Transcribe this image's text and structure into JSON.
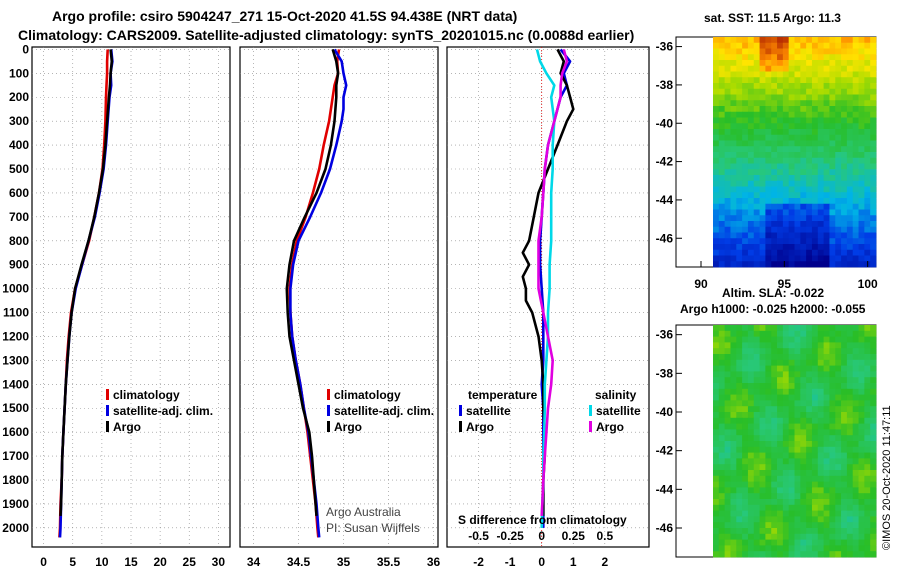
{
  "header": {
    "line1": "Argo profile: csiro 5904247_271 15-Oct-2020 41.5S 94.438E (NRT data)",
    "line2": "Climatology: CARS2009. Satellite-adjusted climatology: synTS_20201015.nc (0.0088d earlier)"
  },
  "depth_ticks": [
    "0",
    "100",
    "200",
    "300",
    "400",
    "500",
    "600",
    "700",
    "800",
    "900",
    "1000",
    "1100",
    "1200",
    "1300",
    "1400",
    "1500",
    "1600",
    "1700",
    "1800",
    "1900",
    "2000"
  ],
  "colors": {
    "climatology": "#e00000",
    "satellite": "#0000e0",
    "argo": "#000000",
    "salinity_sat": "#00d8e8",
    "salinity_argo": "#e000e0"
  },
  "chart_data": [
    {
      "type": "line",
      "panel": "temperature",
      "xlim": [
        -2,
        32
      ],
      "ylim": [
        2080,
        -10
      ],
      "xticks": [
        "0",
        "5",
        "10",
        "15",
        "20",
        "25",
        "30"
      ],
      "xtick_values": [
        0,
        5,
        10,
        15,
        20,
        25,
        30
      ],
      "legend": [
        "climatology",
        "satellite-adj. clim.",
        "Argo"
      ],
      "series": [
        {
          "name": "climatology",
          "depth": [
            0,
            50,
            100,
            150,
            200,
            300,
            400,
            500,
            600,
            700,
            800,
            900,
            1000,
            1100,
            1200,
            1300,
            1400,
            1500,
            1600,
            1700,
            1800,
            1900,
            2000,
            2040
          ],
          "values": [
            11.0,
            10.9,
            10.9,
            10.8,
            10.7,
            10.6,
            10.4,
            10.1,
            9.5,
            8.7,
            7.8,
            6.6,
            5.4,
            4.7,
            4.3,
            4.0,
            3.8,
            3.6,
            3.4,
            3.2,
            3.1,
            2.9,
            2.8,
            2.7
          ]
        },
        {
          "name": "satellite-adj. clim.",
          "depth": [
            0,
            50,
            100,
            150,
            200,
            300,
            400,
            500,
            600,
            700,
            800,
            900,
            1000,
            1100,
            1200,
            1300,
            1400,
            1500,
            1600,
            1700,
            1800,
            1900,
            2000,
            2040
          ],
          "values": [
            11.6,
            11.8,
            11.5,
            11.6,
            11.3,
            11.0,
            10.7,
            10.3,
            9.6,
            8.8,
            7.7,
            6.6,
            5.5,
            4.8,
            4.4,
            4.1,
            3.8,
            3.6,
            3.4,
            3.2,
            3.1,
            3.0,
            2.9,
            2.8
          ]
        },
        {
          "name": "Argo",
          "depth": [
            0,
            50,
            100,
            150,
            200,
            300,
            400,
            500,
            600,
            700,
            800,
            900,
            1000,
            1100,
            1200,
            1300,
            1400,
            1500,
            1600,
            1700,
            1800,
            1900,
            1950
          ],
          "values": [
            11.5,
            11.7,
            11.5,
            11.4,
            11.2,
            10.9,
            10.6,
            10.2,
            9.5,
            8.7,
            7.7,
            6.5,
            5.4,
            4.8,
            4.4,
            4.1,
            3.8,
            3.6,
            3.4,
            3.2,
            3.1,
            3.0,
            2.9
          ]
        }
      ]
    },
    {
      "type": "line",
      "panel": "salinity",
      "xlim": [
        33.85,
        36.05
      ],
      "ylim": [
        2080,
        -10
      ],
      "xticks": [
        "34",
        "34.5",
        "35",
        "35.5",
        "36"
      ],
      "xtick_values": [
        34,
        34.5,
        35,
        35.5,
        36
      ],
      "legend": [
        "climatology",
        "satellite-adj. clim.",
        "Argo"
      ],
      "credit": [
        "Argo Australia",
        "PI: Susan Wijffels"
      ],
      "series": [
        {
          "name": "climatology",
          "depth": [
            0,
            50,
            100,
            150,
            200,
            250,
            300,
            400,
            500,
            600,
            700,
            800,
            900,
            1000,
            1100,
            1200,
            1300,
            1400,
            1500,
            1600,
            1700,
            1800,
            1900,
            2000,
            2040
          ],
          "values": [
            34.95,
            34.93,
            34.94,
            34.9,
            34.88,
            34.86,
            34.84,
            34.78,
            34.73,
            34.66,
            34.58,
            34.48,
            34.43,
            34.4,
            34.41,
            34.43,
            34.47,
            34.52,
            34.56,
            34.6,
            34.63,
            34.66,
            34.69,
            34.71,
            34.72
          ]
        },
        {
          "name": "satellite-adj. clim.",
          "depth": [
            0,
            50,
            100,
            150,
            200,
            250,
            300,
            400,
            500,
            600,
            700,
            800,
            900,
            1000,
            1100,
            1200,
            1300,
            1400,
            1500,
            1600,
            1700,
            1800,
            1900,
            2000,
            2040
          ],
          "values": [
            34.9,
            34.98,
            35.0,
            35.03,
            35.0,
            35.0,
            34.98,
            34.92,
            34.85,
            34.75,
            34.63,
            34.5,
            34.44,
            34.41,
            34.41,
            34.43,
            34.47,
            34.52,
            34.56,
            34.61,
            34.64,
            34.67,
            34.7,
            34.72,
            34.73
          ]
        },
        {
          "name": "Argo",
          "depth": [
            0,
            50,
            100,
            150,
            200,
            250,
            300,
            400,
            500,
            600,
            700,
            800,
            900,
            1000,
            1100,
            1200,
            1300,
            1400,
            1500,
            1600,
            1700,
            1800,
            1900,
            1950
          ],
          "values": [
            34.88,
            34.92,
            34.94,
            34.92,
            34.92,
            34.91,
            34.9,
            34.86,
            34.8,
            34.7,
            34.57,
            34.45,
            34.4,
            34.37,
            34.38,
            34.4,
            34.45,
            34.5,
            34.55,
            34.62,
            34.65,
            34.67,
            34.69,
            34.7
          ]
        }
      ]
    },
    {
      "type": "line",
      "panel": "difference",
      "title": "S difference from climatology",
      "xlim": [
        -3,
        3.4
      ],
      "ylim": [
        2080,
        -10
      ],
      "xticks": [
        "-2",
        "-1",
        "0",
        "1",
        "2"
      ],
      "xtick_values": [
        -2,
        -1,
        0,
        1,
        2
      ],
      "xticks_top": [
        "-0.5",
        "-0.25",
        "0",
        "0.25",
        "0.5"
      ],
      "xtick_top_values": [
        -0.5,
        -0.25,
        0,
        0.25,
        0.5
      ],
      "legend": {
        "temperature": [
          "satellite",
          "Argo"
        ],
        "salinity": [
          "satellite",
          "Argo"
        ],
        "temperature_title": "temperature",
        "salinity_title": "salinity"
      },
      "series": [
        {
          "name": "temperature satellite",
          "depth": [
            0,
            50,
            100,
            150,
            200,
            300,
            400,
            500,
            600,
            700,
            800,
            900,
            1000,
            1100,
            1200,
            1300,
            1400,
            1500,
            1600,
            1700,
            1800,
            1900,
            2000
          ],
          "values": [
            0.6,
            0.9,
            0.7,
            0.8,
            0.6,
            0.4,
            0.2,
            0.1,
            0.05,
            0.0,
            -0.05,
            -0.05,
            0.0,
            0.05,
            0.05,
            0.05,
            0.0,
            0.05,
            0.05,
            0.05,
            0.05,
            0.05,
            0.05
          ]
        },
        {
          "name": "temperature Argo",
          "depth": [
            0,
            50,
            100,
            150,
            200,
            250,
            300,
            400,
            500,
            600,
            700,
            800,
            850,
            900,
            950,
            1000,
            1050,
            1100,
            1200,
            1300,
            1400,
            1500,
            1600,
            1700,
            1800,
            1900,
            1950
          ],
          "values": [
            0.5,
            0.7,
            0.6,
            0.8,
            0.9,
            1.0,
            0.8,
            0.5,
            0.2,
            -0.1,
            -0.25,
            -0.4,
            -0.6,
            -0.4,
            -0.6,
            -0.5,
            -0.5,
            -0.3,
            -0.1,
            0.0,
            0.05,
            0.05,
            0.1,
            0.1,
            0.05,
            0.05,
            0.05
          ]
        },
        {
          "name": "salinity satellite",
          "depth": [
            0,
            50,
            100,
            150,
            200,
            300,
            400,
            500,
            600,
            700,
            800,
            900,
            1000,
            1100,
            1200,
            1300,
            1400,
            1500,
            1600,
            1700,
            1800,
            1900,
            2000
          ],
          "values": [
            -0.15,
            -0.05,
            0.15,
            0.4,
            0.3,
            0.4,
            0.35,
            0.35,
            0.3,
            0.3,
            0.3,
            0.25,
            0.25,
            0.2,
            0.2,
            0.15,
            0.1,
            0.1,
            0.08,
            0.05,
            0.05,
            0.02,
            0.0
          ]
        },
        {
          "name": "salinity Argo",
          "depth": [
            0,
            50,
            100,
            150,
            200,
            300,
            400,
            500,
            600,
            700,
            800,
            900,
            1000,
            1100,
            1200,
            1300,
            1400,
            1500,
            1600,
            1700,
            1800,
            1900,
            1950
          ],
          "values": [
            0.7,
            0.8,
            0.65,
            0.6,
            0.6,
            0.4,
            0.2,
            0.1,
            0.05,
            0.0,
            -0.1,
            -0.1,
            -0.1,
            0.05,
            0.2,
            0.35,
            0.3,
            0.2,
            0.15,
            0.1,
            0.05,
            0.02,
            0.0
          ]
        }
      ]
    },
    {
      "type": "heatmap",
      "panel": "sst_map",
      "title": "sat. SST: 11.5 Argo: 11.3",
      "yticks": [
        "-36",
        "-38",
        "-40",
        "-42",
        "-44",
        "-46"
      ],
      "ytick_values": [
        -36,
        -38,
        -40,
        -42,
        -44,
        -46
      ],
      "xticks": [
        "90",
        "95",
        "100"
      ],
      "xtick_values": [
        90,
        95,
        100
      ],
      "xlim": [
        88.5,
        100.5
      ],
      "ylim": [
        -47.5,
        -35.5
      ]
    },
    {
      "type": "heatmap",
      "panel": "sla_map",
      "title": "Altim. SLA: -0.022",
      "subtitle": "Argo h1000: -0.025 h2000: -0.055",
      "yticks": [
        "-36",
        "-38",
        "-40",
        "-42",
        "-44",
        "-46"
      ],
      "ytick_values": [
        -36,
        -38,
        -40,
        -42,
        -44,
        -46
      ],
      "xlim": [
        88.5,
        100.5
      ],
      "ylim": [
        -47.5,
        -35.5
      ]
    }
  ],
  "footer": "©IMOS 20-Oct-2020 11:47:11"
}
